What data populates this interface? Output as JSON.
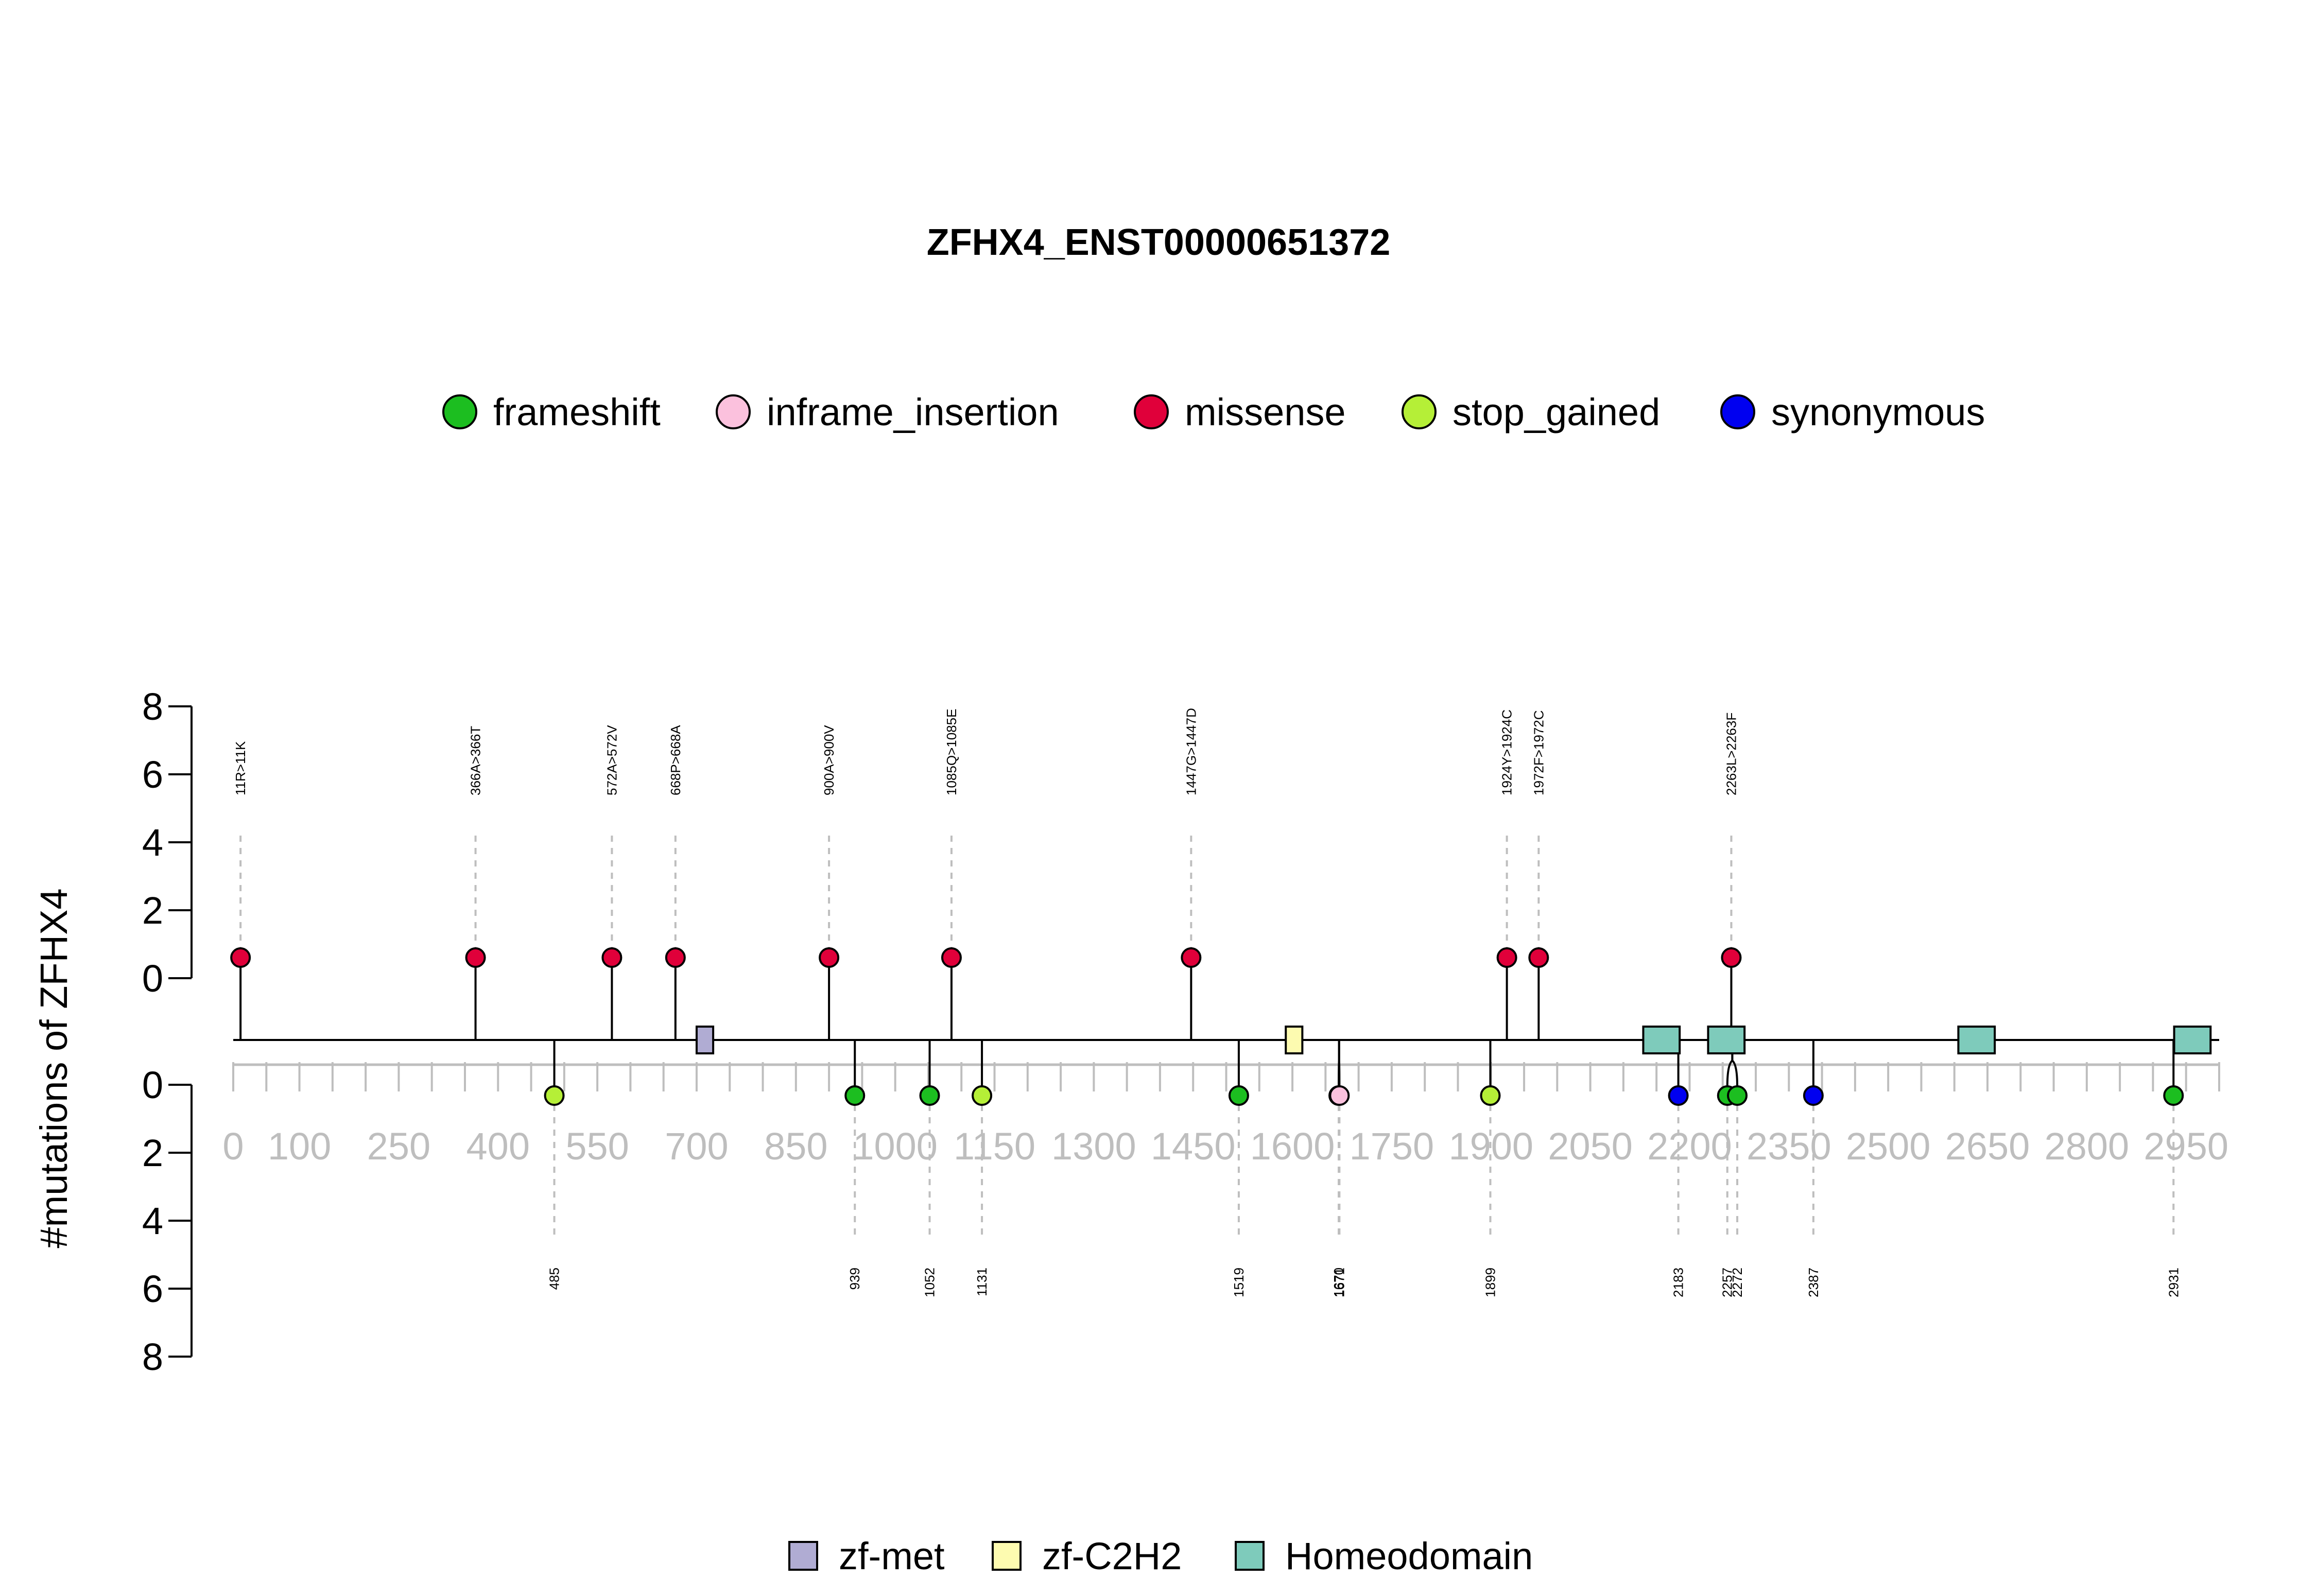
{
  "chart_data": {
    "type": "lollipop",
    "title": "ZFHX4_ENST00000651372",
    "ylabel": "#mutations of ZFHX4",
    "protein_length": 3000,
    "y_ticks": [
      0,
      2,
      4,
      6,
      8
    ],
    "x_ticks": [
      0,
      100,
      250,
      400,
      550,
      700,
      850,
      1000,
      1150,
      1300,
      1450,
      1600,
      1750,
      1900,
      2050,
      2200,
      2350,
      2500,
      2650,
      2800,
      2950
    ],
    "mutation_types": [
      {
        "name": "frameshift",
        "color": "#1cbe20"
      },
      {
        "name": "inframe_insertion",
        "color": "#fbc1dd"
      },
      {
        "name": "missense",
        "color": "#e0003a"
      },
      {
        "name": "stop_gained",
        "color": "#b5ef37"
      },
      {
        "name": "synonymous",
        "color": "#0000f0"
      }
    ],
    "domains": [
      {
        "name": "zf-met",
        "color": "#b0acd3",
        "start": 700,
        "end": 725
      },
      {
        "name": "zf-C2H2",
        "color": "#fdfbb0",
        "start": 1590,
        "end": 1615
      },
      {
        "name": "Homeodomain",
        "color": "#7ecbbb",
        "start": 2130,
        "end": 2185
      },
      {
        "name": "Homeodomain",
        "color": "#7ecbbb",
        "start": 2228,
        "end": 2283
      },
      {
        "name": "Homeodomain",
        "color": "#7ecbbb",
        "start": 2606,
        "end": 2661
      },
      {
        "name": "Homeodomain",
        "color": "#7ecbbb",
        "start": 2932,
        "end": 2987
      }
    ],
    "domain_legend": [
      {
        "name": "zf-met",
        "color": "#b0acd3"
      },
      {
        "name": "zf-C2H2",
        "color": "#fdfbb0"
      },
      {
        "name": "Homeodomain",
        "color": "#7ecbbb"
      }
    ],
    "top_mutations": [
      {
        "label": "11R>11K",
        "position": 11,
        "count": 1,
        "type": "missense"
      },
      {
        "label": "366A>366T",
        "position": 366,
        "count": 1,
        "type": "missense"
      },
      {
        "label": "572A>572V",
        "position": 572,
        "count": 1,
        "type": "missense"
      },
      {
        "label": "668P>668A",
        "position": 668,
        "count": 1,
        "type": "missense"
      },
      {
        "label": "900A>900V",
        "position": 900,
        "count": 1,
        "type": "missense"
      },
      {
        "label": "1085Q>1085E",
        "position": 1085,
        "count": 1,
        "type": "missense"
      },
      {
        "label": "1447G>1447D",
        "position": 1447,
        "count": 1,
        "type": "missense"
      },
      {
        "label": "1924Y>1924C",
        "position": 1924,
        "count": 1,
        "type": "missense"
      },
      {
        "label": "1972F>1972C",
        "position": 1972,
        "count": 1,
        "type": "missense"
      },
      {
        "label": "2263L>2263F",
        "position": 2263,
        "count": 1,
        "type": "missense"
      }
    ],
    "bottom_mutations": [
      {
        "label": "485",
        "position": 485,
        "count": 1,
        "type": "stop_gained"
      },
      {
        "label": "939",
        "position": 939,
        "count": 1,
        "type": "frameshift"
      },
      {
        "label": "1052",
        "position": 1052,
        "count": 1,
        "type": "frameshift"
      },
      {
        "label": "1131",
        "position": 1131,
        "count": 1,
        "type": "stop_gained"
      },
      {
        "label": "1519",
        "position": 1519,
        "count": 1,
        "type": "frameshift"
      },
      {
        "label": "1670",
        "position": 1670,
        "count": 1,
        "type": "stop_gained"
      },
      {
        "label": "1671",
        "position": 1671,
        "count": 1,
        "type": "inframe_insertion"
      },
      {
        "label": "1899",
        "position": 1899,
        "count": 1,
        "type": "stop_gained"
      },
      {
        "label": "2183",
        "position": 2183,
        "count": 1,
        "type": "synonymous"
      },
      {
        "label": "2257",
        "position": 2257,
        "count": 1,
        "type": "frameshift"
      },
      {
        "label": "2272",
        "position": 2272,
        "count": 1,
        "type": "frameshift"
      },
      {
        "label": "2387",
        "position": 2387,
        "count": 1,
        "type": "synonymous"
      },
      {
        "label": "2931",
        "position": 2931,
        "count": 1,
        "type": "frameshift"
      }
    ]
  }
}
